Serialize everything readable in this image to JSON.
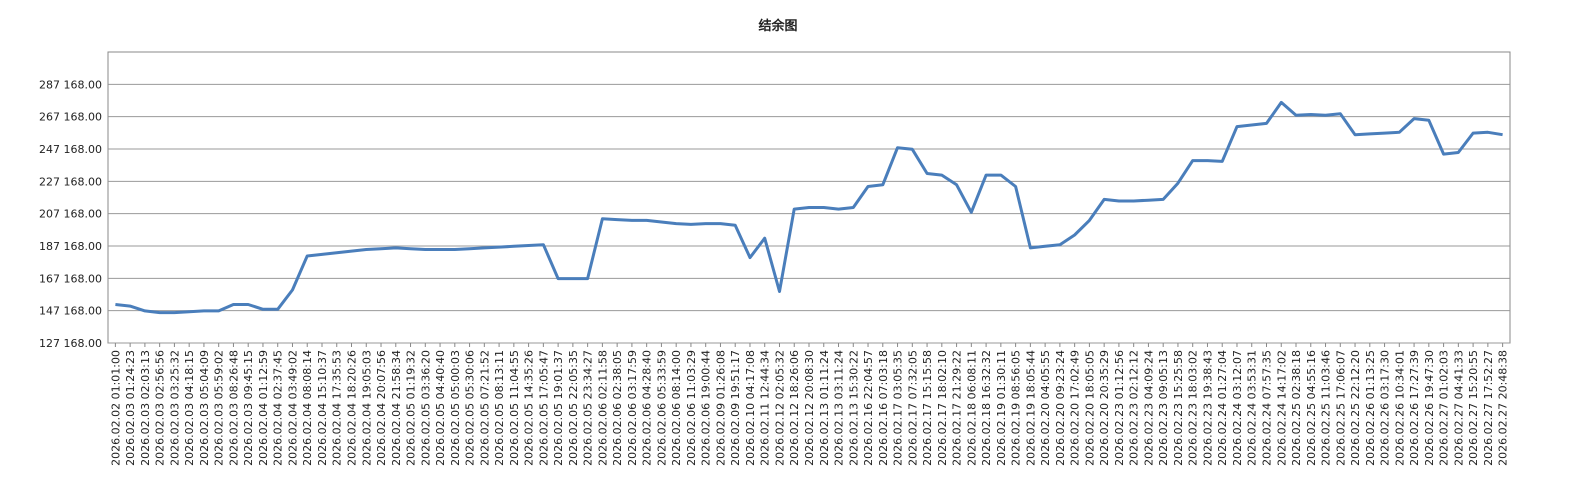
{
  "chart_data": {
    "type": "line",
    "title": "结余图",
    "categories": [
      "2026.02.02 01:01:00",
      "2026.02.03 01:24:23",
      "2026.02.03 02:03:13",
      "2026.02.03 02:56:56",
      "2026.02.03 03:25:32",
      "2026.02.03 04:18:15",
      "2026.02.03 05:04:09",
      "2026.02.03 05:59:02",
      "2026.02.03 08:26:48",
      "2026.02.03 09:45:15",
      "2026.02.04 01:12:59",
      "2026.02.04 02:37:45",
      "2026.02.04 03:49:02",
      "2026.02.04 08:08:14",
      "2026.02.04 15:10:37",
      "2026.02.04 17:35:53",
      "2026.02.04 18:20:26",
      "2026.02.04 19:05:03",
      "2026.02.04 20:07:56",
      "2026.02.04 21:58:34",
      "2026.02.05 01:19:32",
      "2026.02.05 03:36:20",
      "2026.02.05 04:40:40",
      "2026.02.05 05:00:03",
      "2026.02.05 05:30:06",
      "2026.02.05 07:21:52",
      "2026.02.05 08:13:11",
      "2026.02.05 11:04:55",
      "2026.02.05 14:35:26",
      "2026.02.05 17:05:47",
      "2026.02.05 19:01:37",
      "2026.02.05 22:05:35",
      "2026.02.05 23:34:27",
      "2026.02.06 02:11:58",
      "2026.02.06 02:38:05",
      "2026.02.06 03:17:59",
      "2026.02.06 04:28:40",
      "2026.02.06 05:33:59",
      "2026.02.06 08:14:00",
      "2026.02.06 11:03:29",
      "2026.02.06 19:00:44",
      "2026.02.09 01:26:08",
      "2026.02.09 19:51:17",
      "2026.02.10 04:17:08",
      "2026.02.11 12:44:34",
      "2026.02.12 02:05:32",
      "2026.02.12 18:26:06",
      "2026.02.12 20:08:30",
      "2026.02.13 01:11:24",
      "2026.02.13 03:11:24",
      "2026.02.13 15:30:22",
      "2026.02.16 22:04:57",
      "2026.02.16 07:03:18",
      "2026.02.17 03:05:35",
      "2026.02.17 07:32:05",
      "2026.02.17 15:15:58",
      "2026.02.17 18:02:10",
      "2026.02.17 21:29:22",
      "2026.02.18 06:08:11",
      "2026.02.18 16:32:32",
      "2026.02.19 01:30:11",
      "2026.02.19 08:56:05",
      "2026.02.19 18:05:44",
      "2026.02.20 04:05:55",
      "2026.02.20 09:23:24",
      "2026.02.20 17:02:49",
      "2026.02.20 18:05:05",
      "2026.02.20 20:35:29",
      "2026.02.23 01:12:56",
      "2026.02.23 02:12:12",
      "2026.02.23 04:09:24",
      "2026.02.23 09:05:13",
      "2026.02.23 15:25:58",
      "2026.02.23 18:03:02",
      "2026.02.23 19:38:43",
      "2026.02.24 01:27:04",
      "2026.02.24 03:12:07",
      "2026.02.24 03:53:31",
      "2026.02.24 07:57:35",
      "2026.02.24 14:17:02",
      "2026.02.25 02:38:18",
      "2026.02.25 04:55:16",
      "2026.02.25 11:03:46",
      "2026.02.25 17:06:07",
      "2026.02.25 22:12:20",
      "2026.02.26 01:13:25",
      "2026.02.26 03:17:30",
      "2026.02.26 10:34:01",
      "2026.02.26 17:27:39",
      "2026.02.26 19:47:30",
      "2026.02.27 01:02:03",
      "2026.02.27 04:41:33",
      "2026.02.27 15:20:55",
      "2026.02.27 17:52:27",
      "2026.02.27 20:48:38"
    ],
    "values": [
      151000,
      150000,
      147000,
      146000,
      146000,
      146500,
      147000,
      147000,
      151000,
      151000,
      148000,
      148000,
      160000,
      181000,
      182000,
      183000,
      184000,
      185000,
      185500,
      186000,
      185500,
      185000,
      185000,
      185000,
      185500,
      186000,
      186500,
      187000,
      187500,
      188000,
      167000,
      167000,
      167000,
      204000,
      203500,
      203000,
      203000,
      202000,
      201000,
      200500,
      201000,
      201000,
      200000,
      180000,
      192000,
      159000,
      210000,
      211000,
      211000,
      210000,
      211000,
      224000,
      225000,
      248000,
      247000,
      232000,
      231000,
      225000,
      208000,
      231000,
      231000,
      224000,
      186000,
      187000,
      188000,
      194000,
      203000,
      216000,
      215000,
      215000,
      215500,
      216000,
      226000,
      240000,
      240000,
      239500,
      261000,
      262000,
      263000,
      276000,
      268000,
      268500,
      268000,
      269000,
      256000,
      256500,
      257000,
      257500,
      266000,
      265000,
      244000,
      245000,
      257000,
      257500,
      256000
    ],
    "color": "#4a7ebb",
    "ylim": [
      127168,
      307168
    ],
    "yticks": [
      {
        "value": 127168,
        "label": "127 168.00"
      },
      {
        "value": 147168,
        "label": "147 168.00"
      },
      {
        "value": 167168,
        "label": "167 168.00"
      },
      {
        "value": 187168,
        "label": "187 168.00"
      },
      {
        "value": 207168,
        "label": "207 168.00"
      },
      {
        "value": 227168,
        "label": "227 168.00"
      },
      {
        "value": 247168,
        "label": "247 168.00"
      },
      {
        "value": 267168,
        "label": "267 168.00"
      },
      {
        "value": 287168,
        "label": "287 168.00"
      }
    ],
    "grid": true
  }
}
